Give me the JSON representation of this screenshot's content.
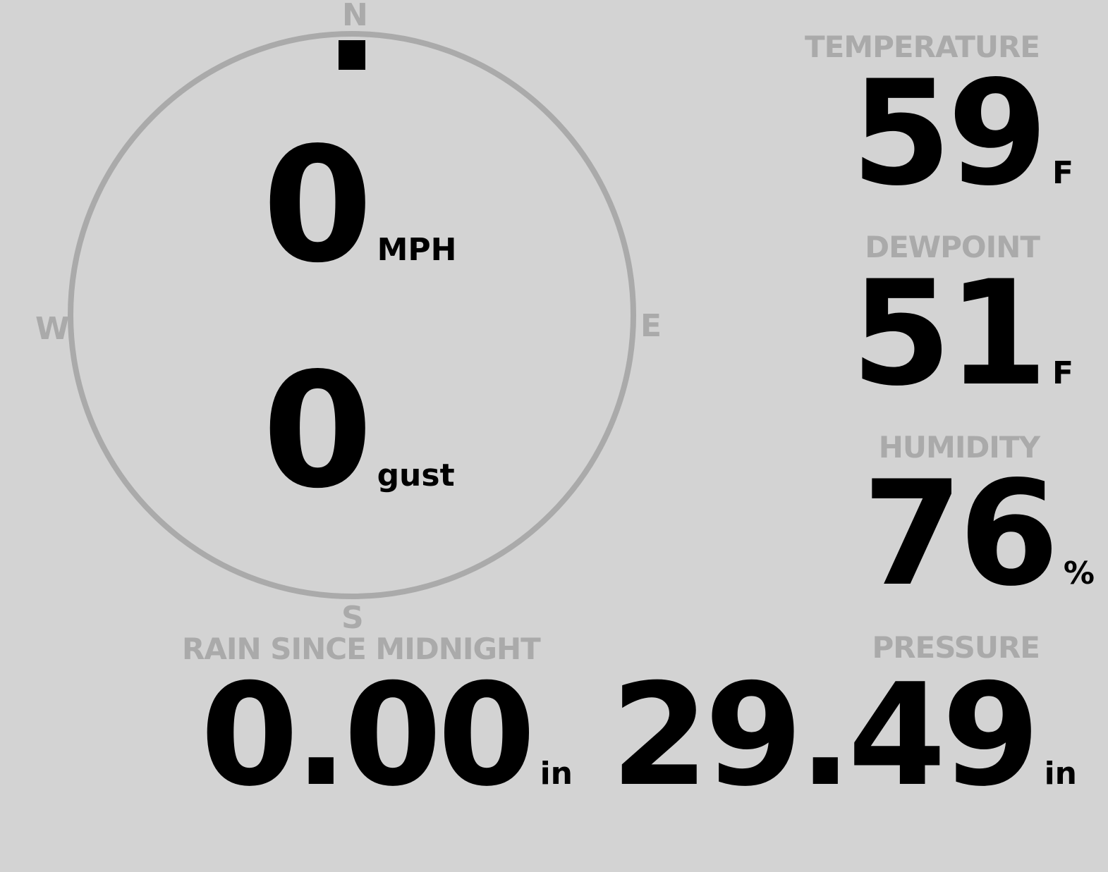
{
  "compass": {
    "north": "N",
    "south": "S",
    "east": "E",
    "west": "W",
    "wind_direction_deg": 0,
    "ring_color": "#aaaaaa",
    "indicator_color": "#000000"
  },
  "wind": {
    "speed": "0",
    "speed_unit": "MPH",
    "gust": "0",
    "gust_unit": "gust"
  },
  "temperature": {
    "label": "TEMPERATURE",
    "value": "59",
    "unit": "F"
  },
  "dewpoint": {
    "label": "DEWPOINT",
    "value": "51",
    "unit": "F"
  },
  "humidity": {
    "label": "HUMIDITY",
    "value": "76",
    "unit": "%"
  },
  "rain": {
    "label": "RAIN SINCE MIDNIGHT",
    "value": "0.00",
    "unit": "in"
  },
  "pressure": {
    "label": "PRESSURE",
    "value": "29.49",
    "unit": "in"
  },
  "colors": {
    "background": "#d3d3d3",
    "label": "#aaaaaa",
    "value": "#000000"
  }
}
